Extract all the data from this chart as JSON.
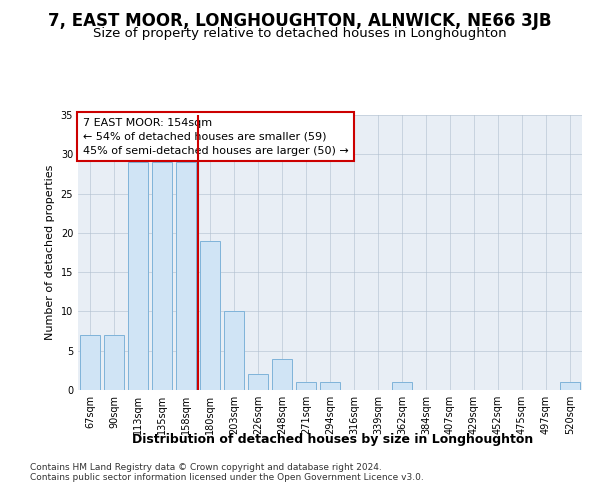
{
  "title": "7, EAST MOOR, LONGHOUGHTON, ALNWICK, NE66 3JB",
  "subtitle": "Size of property relative to detached houses in Longhoughton",
  "xlabel": "Distribution of detached houses by size in Longhoughton",
  "ylabel": "Number of detached properties",
  "categories": [
    "67sqm",
    "90sqm",
    "113sqm",
    "135sqm",
    "158sqm",
    "180sqm",
    "203sqm",
    "226sqm",
    "248sqm",
    "271sqm",
    "294sqm",
    "316sqm",
    "339sqm",
    "362sqm",
    "384sqm",
    "407sqm",
    "429sqm",
    "452sqm",
    "475sqm",
    "497sqm",
    "520sqm"
  ],
  "values": [
    7,
    7,
    29,
    29,
    29,
    19,
    10,
    2,
    4,
    1,
    1,
    0,
    0,
    1,
    0,
    0,
    0,
    0,
    0,
    0,
    1
  ],
  "bar_color": "#d0e4f5",
  "bar_edge_color": "#7fb3d9",
  "vline_x": 4.5,
  "vline_color": "#cc0000",
  "annotation_text": "7 EAST MOOR: 154sqm\n← 54% of detached houses are smaller (59)\n45% of semi-detached houses are larger (50) →",
  "annotation_box_color": "#ffffff",
  "annotation_box_edge": "#cc0000",
  "footer": "Contains HM Land Registry data © Crown copyright and database right 2024.\nContains public sector information licensed under the Open Government Licence v3.0.",
  "ylim": [
    0,
    35
  ],
  "yticks": [
    0,
    5,
    10,
    15,
    20,
    25,
    30,
    35
  ],
  "plot_bg_color": "#e8eef5",
  "title_fontsize": 12,
  "subtitle_fontsize": 9.5,
  "xlabel_fontsize": 9,
  "ylabel_fontsize": 8,
  "tick_fontsize": 7,
  "footer_fontsize": 6.5,
  "ann_fontsize": 8
}
